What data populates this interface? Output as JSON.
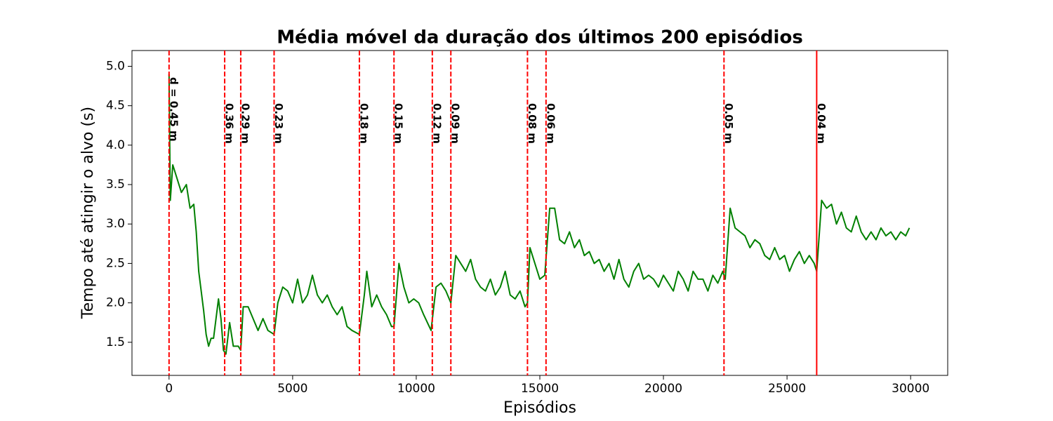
{
  "chart_data": {
    "type": "line",
    "title": "Média móvel da duração dos últimos 200 episódios",
    "xlabel": "Episódios",
    "ylabel": "Tempo até atingir o alvo (s)",
    "color": "#008000",
    "x": [
      0,
      50,
      150,
      300,
      500,
      700,
      850,
      1000,
      1100,
      1200,
      1400,
      1500,
      1600,
      1700,
      1800,
      1900,
      2000,
      2100,
      2200,
      2300,
      2450,
      2600,
      2800,
      2900,
      3000,
      3200,
      3400,
      3600,
      3800,
      4000,
      4250,
      4400,
      4600,
      4800,
      5000,
      5200,
      5400,
      5600,
      5800,
      6000,
      6200,
      6400,
      6600,
      6800,
      7000,
      7200,
      7400,
      7700,
      7900,
      8000,
      8200,
      8400,
      8600,
      8800,
      9000,
      9100,
      9300,
      9500,
      9700,
      9900,
      10100,
      10300,
      10600,
      10800,
      11000,
      11200,
      11400,
      11600,
      11800,
      12000,
      12200,
      12400,
      12600,
      12800,
      13000,
      13200,
      13400,
      13600,
      13800,
      14000,
      14200,
      14400,
      14500,
      14600,
      14800,
      15000,
      15200,
      15400,
      15600,
      15800,
      16000,
      16200,
      16400,
      16600,
      16800,
      17000,
      17200,
      17400,
      17600,
      17800,
      18000,
      18200,
      18400,
      18600,
      18800,
      19000,
      19200,
      19400,
      19600,
      19800,
      20000,
      20200,
      20400,
      20600,
      20800,
      21000,
      21200,
      21400,
      21600,
      21800,
      22000,
      22200,
      22400,
      22500,
      22700,
      22900,
      23100,
      23300,
      23500,
      23700,
      23900,
      24100,
      24300,
      24500,
      24700,
      24900,
      25100,
      25300,
      25500,
      25700,
      25900,
      26100,
      26200,
      26400,
      26600,
      26800,
      27000,
      27200,
      27400,
      27600,
      27800,
      28000,
      28200,
      28400,
      28600,
      28800,
      29000,
      29200,
      29400,
      29600,
      29800,
      29950
    ],
    "values": [
      4.9,
      3.3,
      3.75,
      3.6,
      3.4,
      3.5,
      3.2,
      3.25,
      2.9,
      2.4,
      1.9,
      1.6,
      1.45,
      1.55,
      1.55,
      1.8,
      2.05,
      1.8,
      1.4,
      1.35,
      1.75,
      1.45,
      1.45,
      1.4,
      1.95,
      1.95,
      1.8,
      1.65,
      1.8,
      1.65,
      1.6,
      2.0,
      2.2,
      2.15,
      2.0,
      2.3,
      2.0,
      2.1,
      2.35,
      2.1,
      2.0,
      2.1,
      1.95,
      1.85,
      1.95,
      1.7,
      1.65,
      1.6,
      2.1,
      2.4,
      1.95,
      2.1,
      1.95,
      1.85,
      1.7,
      1.7,
      2.5,
      2.2,
      2.0,
      2.05,
      2.0,
      1.85,
      1.65,
      2.2,
      2.25,
      2.15,
      2.0,
      2.6,
      2.5,
      2.4,
      2.55,
      2.3,
      2.2,
      2.15,
      2.3,
      2.1,
      2.2,
      2.4,
      2.1,
      2.05,
      2.15,
      1.95,
      2.0,
      2.7,
      2.5,
      2.3,
      2.35,
      3.2,
      3.2,
      2.8,
      2.75,
      2.9,
      2.7,
      2.8,
      2.6,
      2.65,
      2.5,
      2.55,
      2.4,
      2.5,
      2.3,
      2.55,
      2.3,
      2.2,
      2.4,
      2.5,
      2.3,
      2.35,
      2.3,
      2.2,
      2.35,
      2.25,
      2.15,
      2.4,
      2.3,
      2.15,
      2.4,
      2.3,
      2.3,
      2.15,
      2.35,
      2.25,
      2.4,
      2.3,
      3.2,
      2.95,
      2.9,
      2.85,
      2.7,
      2.8,
      2.75,
      2.6,
      2.55,
      2.7,
      2.55,
      2.6,
      2.4,
      2.55,
      2.65,
      2.5,
      2.6,
      2.5,
      2.4,
      3.3,
      3.2,
      3.25,
      3.0,
      3.15,
      2.95,
      2.9,
      3.1,
      2.9,
      2.8,
      2.9,
      2.8,
      2.95,
      2.85,
      2.9,
      2.8,
      2.9,
      2.85,
      2.95
    ],
    "vlines_color": "#ff0000",
    "vlines": [
      {
        "x": 0,
        "label": "d = 0.45 m",
        "dashed": true
      },
      {
        "x": 2250,
        "label": "0.36 m",
        "dashed": true
      },
      {
        "x": 2900,
        "label": "0.29 m",
        "dashed": true
      },
      {
        "x": 4250,
        "label": "0.23 m",
        "dashed": true
      },
      {
        "x": 7700,
        "label": "0.18 m",
        "dashed": true
      },
      {
        "x": 9100,
        "label": "0.15 m",
        "dashed": true
      },
      {
        "x": 10650,
        "label": "0.12 m",
        "dashed": true
      },
      {
        "x": 11400,
        "label": "0.09 m",
        "dashed": true
      },
      {
        "x": 14500,
        "label": "0.08 m",
        "dashed": true
      },
      {
        "x": 15250,
        "label": "0.06 m",
        "dashed": true
      },
      {
        "x": 22450,
        "label": "0.05 m",
        "dashed": true
      },
      {
        "x": 26200,
        "label": "0.04 m",
        "dashed": false
      }
    ],
    "xlim": [
      -1500,
      31500
    ],
    "ylim": [
      1.08,
      5.2
    ],
    "xticks": [
      0,
      5000,
      10000,
      15000,
      20000,
      25000,
      30000
    ],
    "yticks": [
      {
        "value": 1.5,
        "label": "1.5"
      },
      {
        "value": 2,
        "label": "2.0"
      },
      {
        "value": 2.5,
        "label": "2.5"
      },
      {
        "value": 3,
        "label": "3.0"
      },
      {
        "value": 3.5,
        "label": "3.5"
      },
      {
        "value": 4,
        "label": "4.0"
      },
      {
        "value": 4.5,
        "label": "4.5"
      },
      {
        "value": 5,
        "label": "5.0"
      }
    ]
  }
}
